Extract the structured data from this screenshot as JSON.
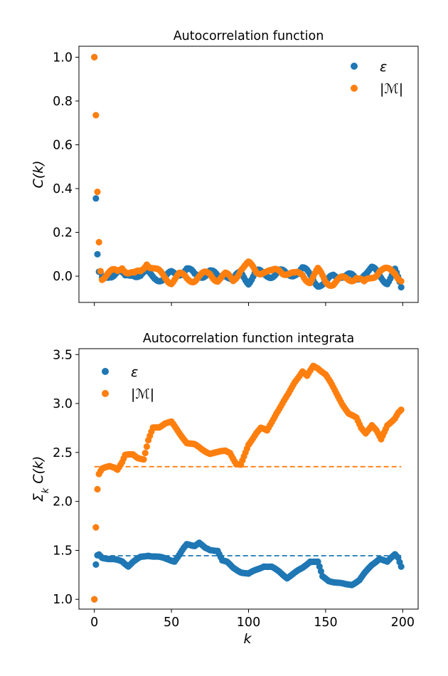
{
  "figure": {
    "colors": {
      "eps": "#1f77b4",
      "mag": "#ff7f0e"
    },
    "shared_xlabel": "k"
  },
  "chart_data": [
    {
      "type": "scatter",
      "title": "Autocorrelation function",
      "xlabel": "",
      "ylabel": "C(k)",
      "xlim": [
        -10,
        210
      ],
      "ylim": [
        -0.12,
        1.05
      ],
      "xticks": [
        0,
        50,
        100,
        150,
        200
      ],
      "yticks": [
        0.0,
        0.2,
        0.4,
        0.6,
        0.8,
        1.0
      ],
      "ytick_labels": [
        "0.0",
        "0.2",
        "0.4",
        "0.6",
        "0.8",
        "1.0"
      ],
      "show_xtick_labels": false,
      "legend_position": "top-right",
      "series": [
        {
          "name": "ε",
          "color_key": "eps",
          "anchors": [
            [
              0,
              1.0
            ],
            [
              1,
              0.355
            ],
            [
              2,
              0.1
            ],
            [
              3,
              0.02
            ],
            [
              5,
              -0.02
            ],
            [
              10,
              0.01
            ],
            [
              15,
              0.02
            ],
            [
              20,
              -0.01
            ],
            [
              25,
              0.02
            ],
            [
              30,
              0.0
            ],
            [
              35,
              0.01
            ],
            [
              40,
              0.0
            ],
            [
              45,
              -0.02
            ],
            [
              50,
              0.01
            ],
            [
              55,
              0.02
            ],
            [
              60,
              0.03
            ],
            [
              65,
              0.0
            ],
            [
              70,
              0.01
            ],
            [
              75,
              0.02
            ],
            [
              80,
              -0.01
            ],
            [
              85,
              0.02
            ],
            [
              90,
              -0.02
            ],
            [
              95,
              0.01
            ],
            [
              100,
              -0.02
            ],
            [
              105,
              0.02
            ],
            [
              110,
              0.0
            ],
            [
              115,
              0.01
            ],
            [
              120,
              0.02
            ],
            [
              125,
              0.0
            ],
            [
              130,
              0.02
            ],
            [
              135,
              0.03
            ],
            [
              140,
              0.0
            ],
            [
              145,
              -0.03
            ],
            [
              150,
              -0.04
            ],
            [
              155,
              0.0
            ],
            [
              160,
              0.01
            ],
            [
              165,
              0.0
            ],
            [
              170,
              -0.02
            ],
            [
              175,
              0.02
            ],
            [
              180,
              0.03
            ],
            [
              185,
              0.0
            ],
            [
              190,
              -0.02
            ],
            [
              195,
              0.02
            ],
            [
              199,
              -0.06
            ]
          ]
        },
        {
          "name": "|ℳ|",
          "color_key": "mag",
          "anchors": [
            [
              0,
              1.0
            ],
            [
              1,
              0.735
            ],
            [
              2,
              0.385
            ],
            [
              3,
              0.155
            ],
            [
              4,
              0.04
            ],
            [
              5,
              0.0
            ],
            [
              10,
              0.01
            ],
            [
              15,
              0.02
            ],
            [
              18,
              0.05
            ],
            [
              22,
              0.02
            ],
            [
              26,
              0.0
            ],
            [
              30,
              0.02
            ],
            [
              34,
              0.07
            ],
            [
              36,
              0.05
            ],
            [
              40,
              0.02
            ],
            [
              45,
              0.0
            ],
            [
              50,
              -0.02
            ],
            [
              55,
              0.0
            ],
            [
              60,
              -0.01
            ],
            [
              65,
              -0.01
            ],
            [
              70,
              0.0
            ],
            [
              75,
              0.01
            ],
            [
              80,
              -0.01
            ],
            [
              85,
              0.0
            ],
            [
              90,
              -0.02
            ],
            [
              95,
              0.04
            ],
            [
              100,
              0.05
            ],
            [
              105,
              0.02
            ],
            [
              110,
              0.03
            ],
            [
              115,
              0.01
            ],
            [
              120,
              0.03
            ],
            [
              125,
              0.02
            ],
            [
              130,
              0.0
            ],
            [
              135,
              0.01
            ],
            [
              140,
              -0.02
            ],
            [
              145,
              0.02
            ],
            [
              150,
              -0.02
            ],
            [
              155,
              -0.03
            ],
            [
              160,
              -0.02
            ],
            [
              165,
              -0.01
            ],
            [
              170,
              0.0
            ],
            [
              175,
              -0.04
            ],
            [
              180,
              0.0
            ],
            [
              185,
              0.03
            ],
            [
              190,
              0.02
            ],
            [
              195,
              0.02
            ],
            [
              199,
              -0.01
            ]
          ]
        }
      ]
    },
    {
      "type": "scatter",
      "title": "Autocorrelation function integrata",
      "xlabel": "k",
      "ylabel": "Σ_k C(k)",
      "xlim": [
        -10,
        210
      ],
      "ylim": [
        0.9,
        3.56
      ],
      "xticks": [
        0,
        50,
        100,
        150,
        200
      ],
      "yticks": [
        1.0,
        1.5,
        2.0,
        2.5,
        3.0,
        3.5
      ],
      "ytick_labels": [
        "1.0",
        "1.5",
        "2.0",
        "2.5",
        "3.0",
        "3.5"
      ],
      "show_xtick_labels": true,
      "legend_position": "top-left",
      "hlines": [
        {
          "y": 1.445,
          "x_range": [
            0,
            199
          ],
          "color_key": "eps",
          "style": "dashed"
        },
        {
          "y": 2.355,
          "x_range": [
            0,
            199
          ],
          "color_key": "mag",
          "style": "dashed"
        }
      ],
      "series": [
        {
          "name": "ε",
          "color_key": "eps",
          "anchors": [
            [
              0,
              1.0
            ],
            [
              1,
              1.355
            ],
            [
              2,
              1.45
            ],
            [
              3,
              1.46
            ],
            [
              5,
              1.43
            ],
            [
              10,
              1.41
            ],
            [
              15,
              1.4
            ],
            [
              18,
              1.39
            ],
            [
              22,
              1.34
            ],
            [
              25,
              1.38
            ],
            [
              30,
              1.43
            ],
            [
              35,
              1.45
            ],
            [
              38,
              1.44
            ],
            [
              42,
              1.43
            ],
            [
              48,
              1.41
            ],
            [
              52,
              1.39
            ],
            [
              55,
              1.45
            ],
            [
              58,
              1.52
            ],
            [
              60,
              1.56
            ],
            [
              65,
              1.55
            ],
            [
              68,
              1.58
            ],
            [
              72,
              1.52
            ],
            [
              75,
              1.5
            ],
            [
              80,
              1.5
            ],
            [
              83,
              1.4
            ],
            [
              86,
              1.38
            ],
            [
              90,
              1.32
            ],
            [
              95,
              1.28
            ],
            [
              100,
              1.26
            ],
            [
              105,
              1.3
            ],
            [
              110,
              1.34
            ],
            [
              115,
              1.33
            ],
            [
              120,
              1.28
            ],
            [
              125,
              1.22
            ],
            [
              130,
              1.27
            ],
            [
              135,
              1.32
            ],
            [
              140,
              1.39
            ],
            [
              145,
              1.38
            ],
            [
              148,
              1.23
            ],
            [
              152,
              1.19
            ],
            [
              158,
              1.17
            ],
            [
              163,
              1.15
            ],
            [
              167,
              1.15
            ],
            [
              172,
              1.2
            ],
            [
              175,
              1.26
            ],
            [
              180,
              1.35
            ],
            [
              185,
              1.42
            ],
            [
              190,
              1.38
            ],
            [
              195,
              1.46
            ],
            [
              197,
              1.43
            ],
            [
              199,
              1.34
            ]
          ]
        },
        {
          "name": "|ℳ|",
          "color_key": "mag",
          "anchors": [
            [
              0,
              1.0
            ],
            [
              1,
              1.735
            ],
            [
              2,
              2.125
            ],
            [
              3,
              2.28
            ],
            [
              5,
              2.33
            ],
            [
              10,
              2.36
            ],
            [
              13,
              2.35
            ],
            [
              15,
              2.33
            ],
            [
              18,
              2.4
            ],
            [
              20,
              2.47
            ],
            [
              25,
              2.48
            ],
            [
              28,
              2.45
            ],
            [
              32,
              2.43
            ],
            [
              35,
              2.62
            ],
            [
              38,
              2.75
            ],
            [
              42,
              2.76
            ],
            [
              46,
              2.8
            ],
            [
              50,
              2.81
            ],
            [
              55,
              2.7
            ],
            [
              60,
              2.6
            ],
            [
              65,
              2.58
            ],
            [
              70,
              2.53
            ],
            [
              75,
              2.49
            ],
            [
              80,
              2.5
            ],
            [
              85,
              2.52
            ],
            [
              88,
              2.5
            ],
            [
              92,
              2.38
            ],
            [
              95,
              2.37
            ],
            [
              100,
              2.58
            ],
            [
              105,
              2.7
            ],
            [
              108,
              2.75
            ],
            [
              112,
              2.72
            ],
            [
              118,
              2.9
            ],
            [
              122,
              3.0
            ],
            [
              126,
              3.1
            ],
            [
              130,
              3.22
            ],
            [
              135,
              3.33
            ],
            [
              138,
              3.28
            ],
            [
              142,
              3.38
            ],
            [
              145,
              3.36
            ],
            [
              150,
              3.3
            ],
            [
              153,
              3.22
            ],
            [
              157,
              3.1
            ],
            [
              161,
              2.99
            ],
            [
              165,
              2.9
            ],
            [
              170,
              2.85
            ],
            [
              173,
              2.75
            ],
            [
              176,
              2.7
            ],
            [
              180,
              2.78
            ],
            [
              183,
              2.72
            ],
            [
              186,
              2.63
            ],
            [
              190,
              2.78
            ],
            [
              195,
              2.85
            ],
            [
              197,
              2.9
            ],
            [
              199,
              2.93
            ]
          ]
        }
      ]
    }
  ]
}
